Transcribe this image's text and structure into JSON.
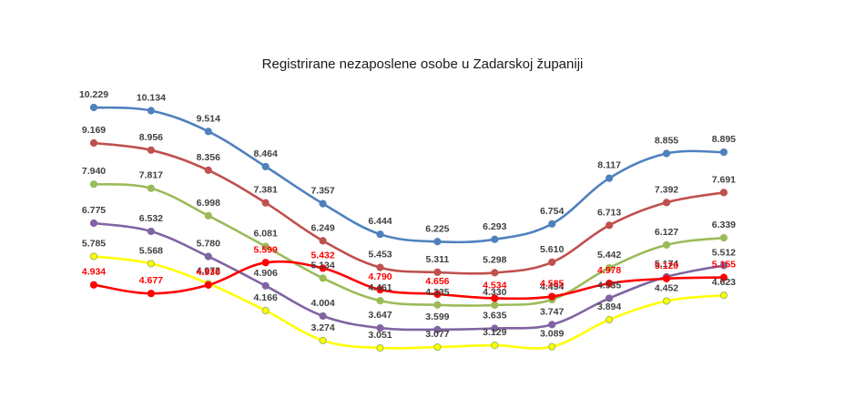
{
  "chart_data": {
    "type": "line",
    "title": "Registrirane nezaposlene osobe u Zadarskoj županiji",
    "xlabel": "",
    "ylabel": "",
    "categories": [
      "",
      "",
      "",
      "",
      "",
      "",
      "",
      "",
      "",
      "",
      "",
      ""
    ],
    "ylim": [
      2500,
      10500
    ],
    "grid": false,
    "legend": "none",
    "series": [
      {
        "color": "#4f81bd",
        "label_color": "#404040",
        "values": [
          10229,
          10134,
          9514,
          8464,
          7357,
          6444,
          6225,
          6293,
          6754,
          8117,
          8855,
          8895
        ],
        "labels": [
          "10.229",
          "10.134",
          "9.514",
          "8.464",
          "7.357",
          "6.444",
          "6.225",
          "6.293",
          "6.754",
          "8.117",
          "8.855",
          "8.895"
        ]
      },
      {
        "color": "#c0504d",
        "label_color": "#404040",
        "values": [
          9169,
          8956,
          8356,
          7381,
          6249,
          5453,
          5311,
          5298,
          5610,
          6713,
          7392,
          7691
        ],
        "labels": [
          "9.169",
          "8.956",
          "8.356",
          "7.381",
          "6.249",
          "5.453",
          "5.311",
          "5.298",
          "5.610",
          "6.713",
          "7.392",
          "7.691"
        ]
      },
      {
        "color": "#9bbb59",
        "label_color": "#404040",
        "values": [
          7940,
          7817,
          6998,
          6081,
          5134,
          4461,
          4335,
          4330,
          4494,
          5442,
          6127,
          6339
        ],
        "labels": [
          "7.940",
          "7.817",
          "6.998",
          "6.081",
          "5.134",
          "4.461",
          "4.335",
          "4.330",
          "4.494",
          "5.442",
          "6.127",
          "6.339"
        ]
      },
      {
        "color": "#8064a2",
        "label_color": "#404040",
        "values": [
          6775,
          6532,
          5780,
          4906,
          4004,
          3647,
          3599,
          3635,
          3747,
          4535,
          5174,
          5512
        ],
        "labels": [
          "6.775",
          "6.532",
          "5.780",
          "4.906",
          "4.004",
          "3.647",
          "3.599",
          "3.635",
          "3.747",
          "4.535",
          "5.174",
          "5.512"
        ]
      },
      {
        "color": "#ffff00",
        "label_color": "#404040",
        "values": [
          5785,
          5568,
          4972,
          4166,
          3274,
          3051,
          3077,
          3129,
          3089,
          3894,
          4452,
          4623
        ],
        "labels": [
          "5.785",
          "5.568",
          "4.972",
          "4.166",
          "3.274",
          "3.051",
          "3.077",
          "3.129",
          "3.089",
          "3.894",
          "4.452",
          "4.623"
        ]
      },
      {
        "color": "#ff0000",
        "label_color": "#ff0000",
        "values": [
          4934,
          4677,
          4930,
          5599,
          5432,
          4790,
          4656,
          4534,
          4585,
          4978,
          5120,
          5155
        ],
        "labels": [
          "4.934",
          "4.677",
          "4.930",
          "5.599",
          "5.432",
          "4.790",
          "4.656",
          "4.534",
          "4.585",
          "4.978",
          "5.120",
          "5.155"
        ]
      }
    ]
  }
}
